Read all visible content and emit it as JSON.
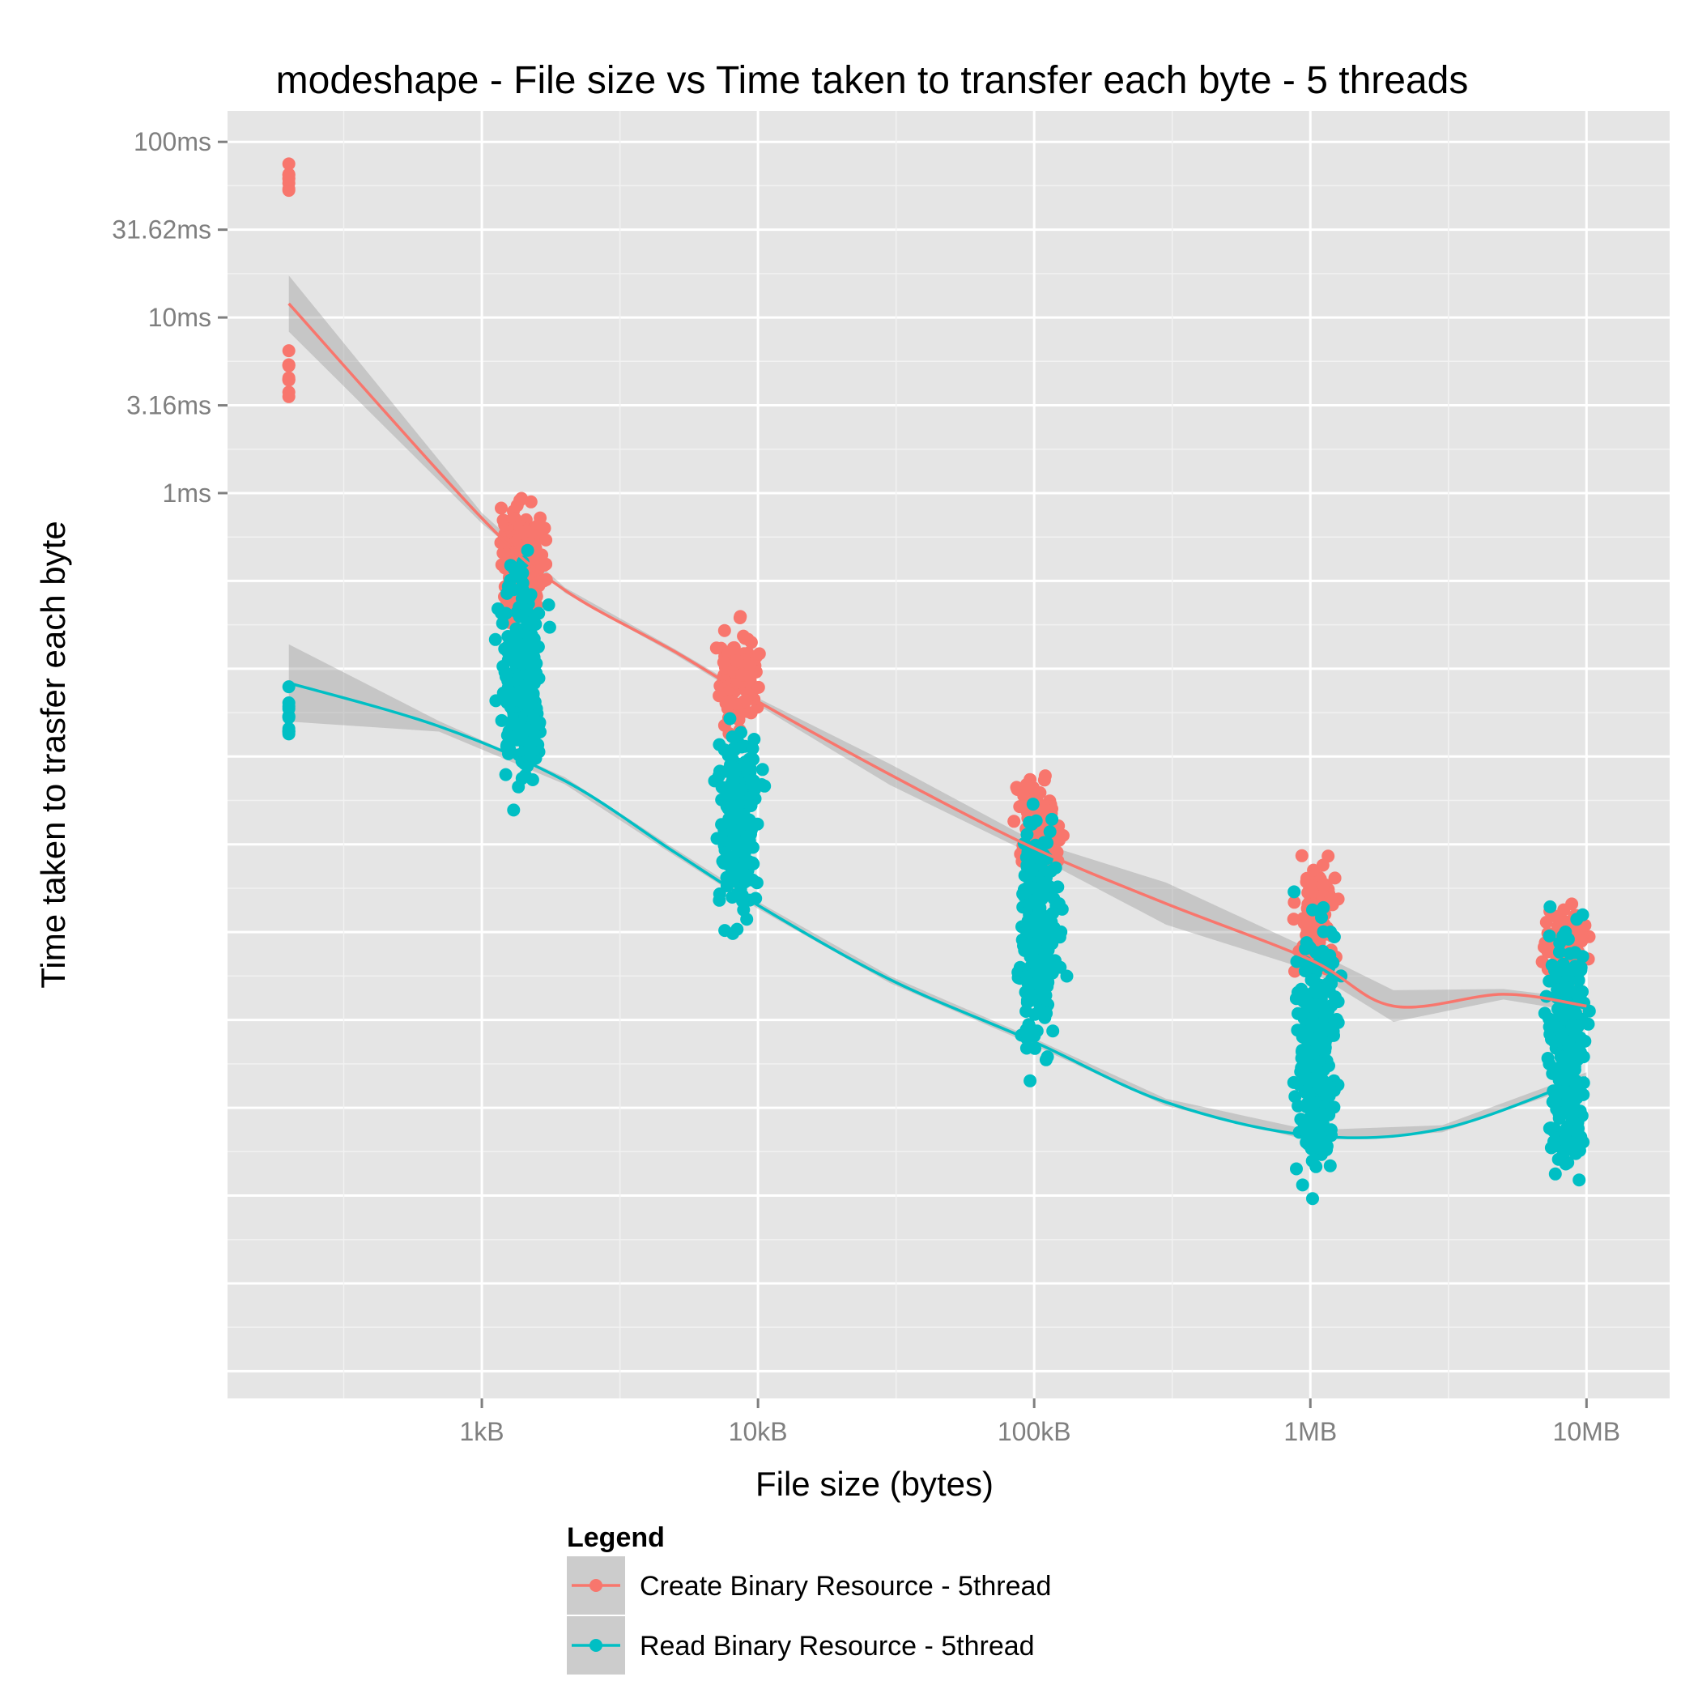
{
  "chart_data": {
    "type": "scatter",
    "title": "modeshape - File size vs Time taken to transfer each byte - 5 threads",
    "xlabel": "File size (bytes)",
    "ylabel": "Time taken to trasfer each byte",
    "x_scale": "log10",
    "y_scale": "log10",
    "xlim_bytes": [
      120,
      20000000
    ],
    "ylim_seconds": [
      7e-09,
      0.15
    ],
    "x_ticks": [
      {
        "value": 1000,
        "label": "1kB"
      },
      {
        "value": 10000,
        "label": "10kB"
      },
      {
        "value": 100000,
        "label": "100kB"
      },
      {
        "value": 1000000,
        "label": "1MB"
      },
      {
        "value": 10000000,
        "label": "10MB"
      }
    ],
    "y_ticks": [
      {
        "value": 0.1,
        "label": "100ms"
      },
      {
        "value": 0.03162,
        "label": "31.62ms"
      },
      {
        "value": 0.01,
        "label": "10ms"
      },
      {
        "value": 0.00316,
        "label": "3.16ms"
      },
      {
        "value": 0.001,
        "label": "1ms"
      }
    ],
    "grid": true,
    "legend_position": "bottom",
    "legend_title": "Legend",
    "series": [
      {
        "name": "Create Binary Resource - 5thread",
        "color": "#F8766D",
        "clusters": [
          {
            "x": 200,
            "y_min": 0.0029,
            "y_max": 0.0085,
            "n": 10
          },
          {
            "x": 200,
            "y_min": 0.042,
            "y_max": 0.09,
            "n": 8
          },
          {
            "x": 1400,
            "y_min": 0.00015,
            "y_max": 0.0011,
            "n": 220
          },
          {
            "x": 8500,
            "y_min": 4e-05,
            "y_max": 0.0002,
            "n": 130
          },
          {
            "x": 105000,
            "y_min": 5.5e-06,
            "y_max": 2.7e-05,
            "n": 150
          },
          {
            "x": 1050000,
            "y_min": 1.6e-06,
            "y_max": 9.4e-06,
            "n": 120
          },
          {
            "x": 8500000,
            "y_min": 1.6e-06,
            "y_max": 4.6e-06,
            "n": 120
          }
        ],
        "smooth": [
          {
            "x": 200,
            "y": 0.012,
            "se": 0.16
          },
          {
            "x": 1000,
            "y": 0.00072,
            "se": 0.03
          },
          {
            "x": 2000,
            "y": 0.00028,
            "se": 0.015
          },
          {
            "x": 5000,
            "y": 0.000125,
            "se": 0.015
          },
          {
            "x": 10000,
            "y": 6.5e-05,
            "se": 0.02
          },
          {
            "x": 30000,
            "y": 2.5e-05,
            "se": 0.06
          },
          {
            "x": 100000,
            "y": 9.5e-06,
            "se": 0.04
          },
          {
            "x": 300000,
            "y": 4.6e-06,
            "se": 0.12
          },
          {
            "x": 1000000,
            "y": 2.2e-06,
            "se": 0.06
          },
          {
            "x": 2000000,
            "y": 1.2e-06,
            "se": 0.09
          },
          {
            "x": 5000000,
            "y": 1.4e-06,
            "se": 0.03
          },
          {
            "x": 10000000,
            "y": 1.2e-06,
            "se": 0.04
          }
        ]
      },
      {
        "name": "Read Binary Resource - 5thread",
        "color": "#00BFC4",
        "clusters": [
          {
            "x": 200,
            "y_min": 3.7e-05,
            "y_max": 8.5e-05,
            "n": 12
          },
          {
            "x": 1400,
            "y_min": 1.3e-05,
            "y_max": 0.00052,
            "n": 260
          },
          {
            "x": 8500,
            "y_min": 2.6e-06,
            "y_max": 7e-05,
            "n": 230
          },
          {
            "x": 105000,
            "y_min": 4.5e-07,
            "y_max": 1.8e-05,
            "n": 230
          },
          {
            "x": 1050000,
            "y_min": 7.5e-08,
            "y_max": 5.9e-06,
            "n": 260
          },
          {
            "x": 8500000,
            "y_min": 1e-07,
            "y_max": 4.7e-06,
            "n": 230
          }
        ],
        "smooth": [
          {
            "x": 200,
            "y": 8.3e-05,
            "se": 0.22
          },
          {
            "x": 700,
            "y": 4.7e-05,
            "se": 0.03
          },
          {
            "x": 2000,
            "y": 2.3e-05,
            "se": 0.02
          },
          {
            "x": 5000,
            "y": 9e-06,
            "se": 0.02
          },
          {
            "x": 10000,
            "y": 4.5e-06,
            "se": 0.02
          },
          {
            "x": 30000,
            "y": 1.7e-06,
            "se": 0.02
          },
          {
            "x": 100000,
            "y": 7.5e-07,
            "se": 0.02
          },
          {
            "x": 300000,
            "y": 3.4e-07,
            "se": 0.02
          },
          {
            "x": 1000000,
            "y": 2.2e-07,
            "se": 0.03
          },
          {
            "x": 3000000,
            "y": 2.4e-07,
            "se": 0.02
          },
          {
            "x": 10000000,
            "y": 4.7e-07,
            "se": 0.03
          }
        ]
      }
    ]
  }
}
